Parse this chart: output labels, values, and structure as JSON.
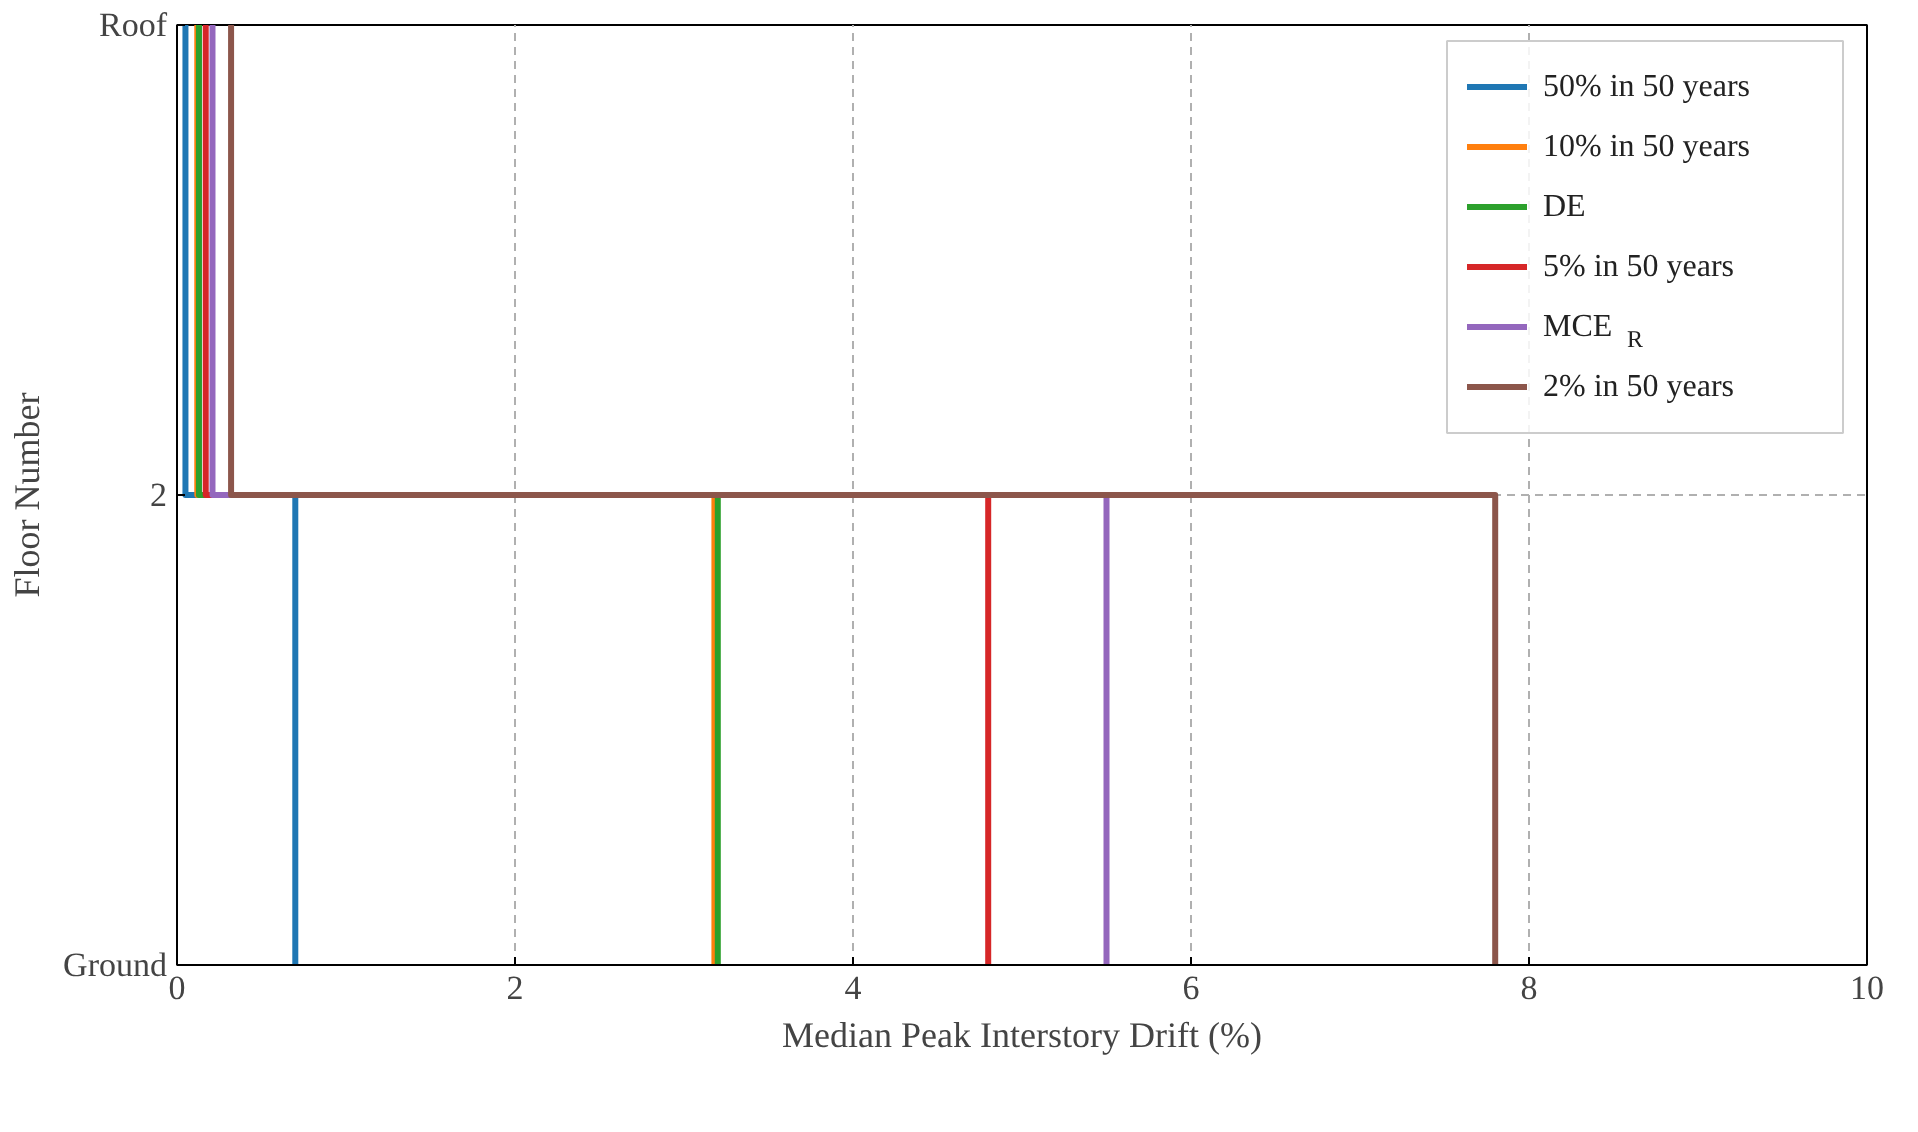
{
  "chart_data": {
    "type": "step",
    "orientation": "horizontal",
    "xlabel": "Median Peak Interstory Drift (%)",
    "ylabel": "Floor Number",
    "categories": [
      "Roof",
      "2",
      "Ground"
    ],
    "xlim": [
      0,
      10
    ],
    "xticks": [
      0,
      2,
      4,
      6,
      8,
      10
    ],
    "grid": true,
    "legend": "top right",
    "line_style": "solid",
    "series": [
      {
        "name": "50% in 50 years",
        "color": "#1f77b4",
        "values": [
          0.05,
          0.7,
          0.7
        ]
      },
      {
        "name": "10% in 50 years",
        "color": "#ff7f0e",
        "values": [
          0.12,
          3.18,
          3.18
        ]
      },
      {
        "name": "DE",
        "color": "#2ca02c",
        "values": [
          0.13,
          3.2,
          3.2
        ]
      },
      {
        "name": "5% in 50 years",
        "color": "#d62728",
        "values": [
          0.17,
          4.8,
          4.8
        ]
      },
      {
        "name": "MCE$_{R}$",
        "color": "#9467bd",
        "values": [
          0.21,
          5.5,
          5.5
        ]
      },
      {
        "name": "2% in 50 years",
        "color": "#8c564b",
        "values": [
          0.32,
          7.8,
          7.8
        ]
      }
    ]
  }
}
